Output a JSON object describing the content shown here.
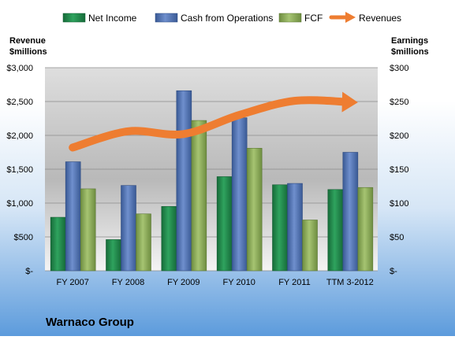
{
  "chart_data": {
    "type": "bar",
    "title": "Warnaco Group",
    "categories": [
      "FY 2007",
      "FY 2008",
      "FY 2009",
      "FY 2010",
      "FY 2011",
      "TTM 3-2012"
    ],
    "left_axis": {
      "label_line1": "Revenue",
      "label_line2": "$millions",
      "ticks": [
        "$-",
        "$500",
        "$1,000",
        "$1,500",
        "$2,000",
        "$2,500",
        "$3,000"
      ],
      "ylim": [
        0,
        3000
      ]
    },
    "right_axis": {
      "label_line1": "Earnings",
      "label_line2": "$millions",
      "ticks": [
        "$-",
        "$50",
        "$100",
        "$150",
        "$200",
        "$250",
        "$300"
      ],
      "ylim": [
        0,
        300
      ]
    },
    "series": [
      {
        "name": "Net Income",
        "axis": "right",
        "kind": "bar",
        "color": "#1f8a4c",
        "values": [
          79,
          46,
          95,
          139,
          127,
          120
        ]
      },
      {
        "name": "Cash from Operations",
        "axis": "right",
        "kind": "bar",
        "color": "#4f6fb0",
        "values": [
          161,
          126,
          266,
          226,
          129,
          175
        ]
      },
      {
        "name": "FCF",
        "axis": "right",
        "kind": "bar",
        "color": "#88a85a",
        "values": [
          121,
          84,
          222,
          181,
          75,
          123
        ]
      },
      {
        "name": "Revenues",
        "axis": "left",
        "kind": "line",
        "color": "#ee7d31",
        "values": [
          1820,
          2060,
          2020,
          2300,
          2510,
          2490
        ]
      }
    ],
    "grid": true,
    "legend": "top"
  }
}
